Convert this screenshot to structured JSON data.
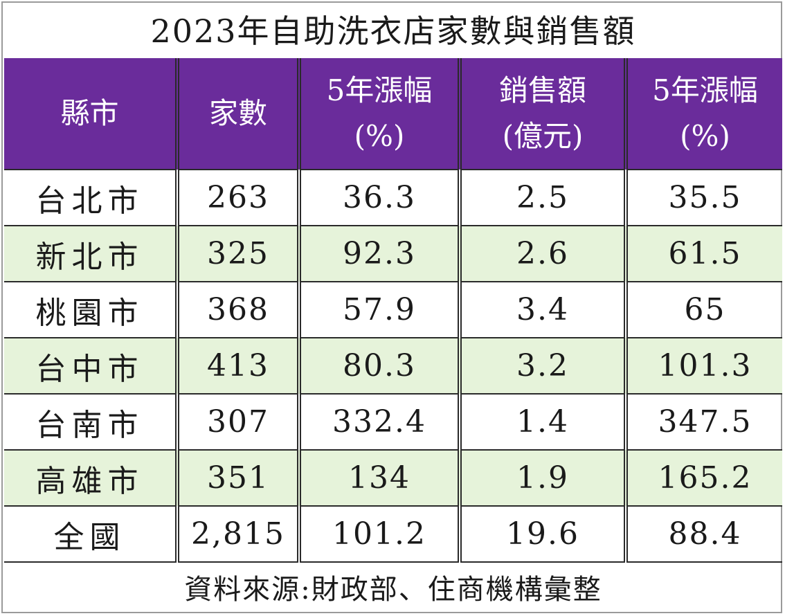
{
  "title": "2023年自助洗衣店家數與銷售額",
  "colors": {
    "header_bg": "#6a2c9b",
    "header_text": "#ffffff",
    "alt_row_bg": "#e6f3da",
    "border": "#2a2a2a"
  },
  "table": {
    "headers": [
      {
        "line1": "縣市",
        "line2": ""
      },
      {
        "line1": "家數",
        "line2": ""
      },
      {
        "line1": "5年漲幅",
        "line2": "(%)"
      },
      {
        "line1": "銷售額",
        "line2": "(億元)"
      },
      {
        "line1": "5年漲幅",
        "line2": "(%)"
      }
    ],
    "rows": [
      [
        "台北市",
        "263",
        "36.3",
        "2.5",
        "35.5"
      ],
      [
        "新北市",
        "325",
        "92.3",
        "2.6",
        "61.5"
      ],
      [
        "桃園市",
        "368",
        "57.9",
        "3.4",
        "65"
      ],
      [
        "台中市",
        "413",
        "80.3",
        "3.2",
        "101.3"
      ],
      [
        "台南市",
        "307",
        "332.4",
        "1.4",
        "347.5"
      ],
      [
        "高雄市",
        "351",
        "134",
        "1.9",
        "165.2"
      ],
      [
        "全國",
        "2,815",
        "101.2",
        "19.6",
        "88.4"
      ]
    ]
  },
  "source": "資料來源:財政部、住商機構彙整"
}
